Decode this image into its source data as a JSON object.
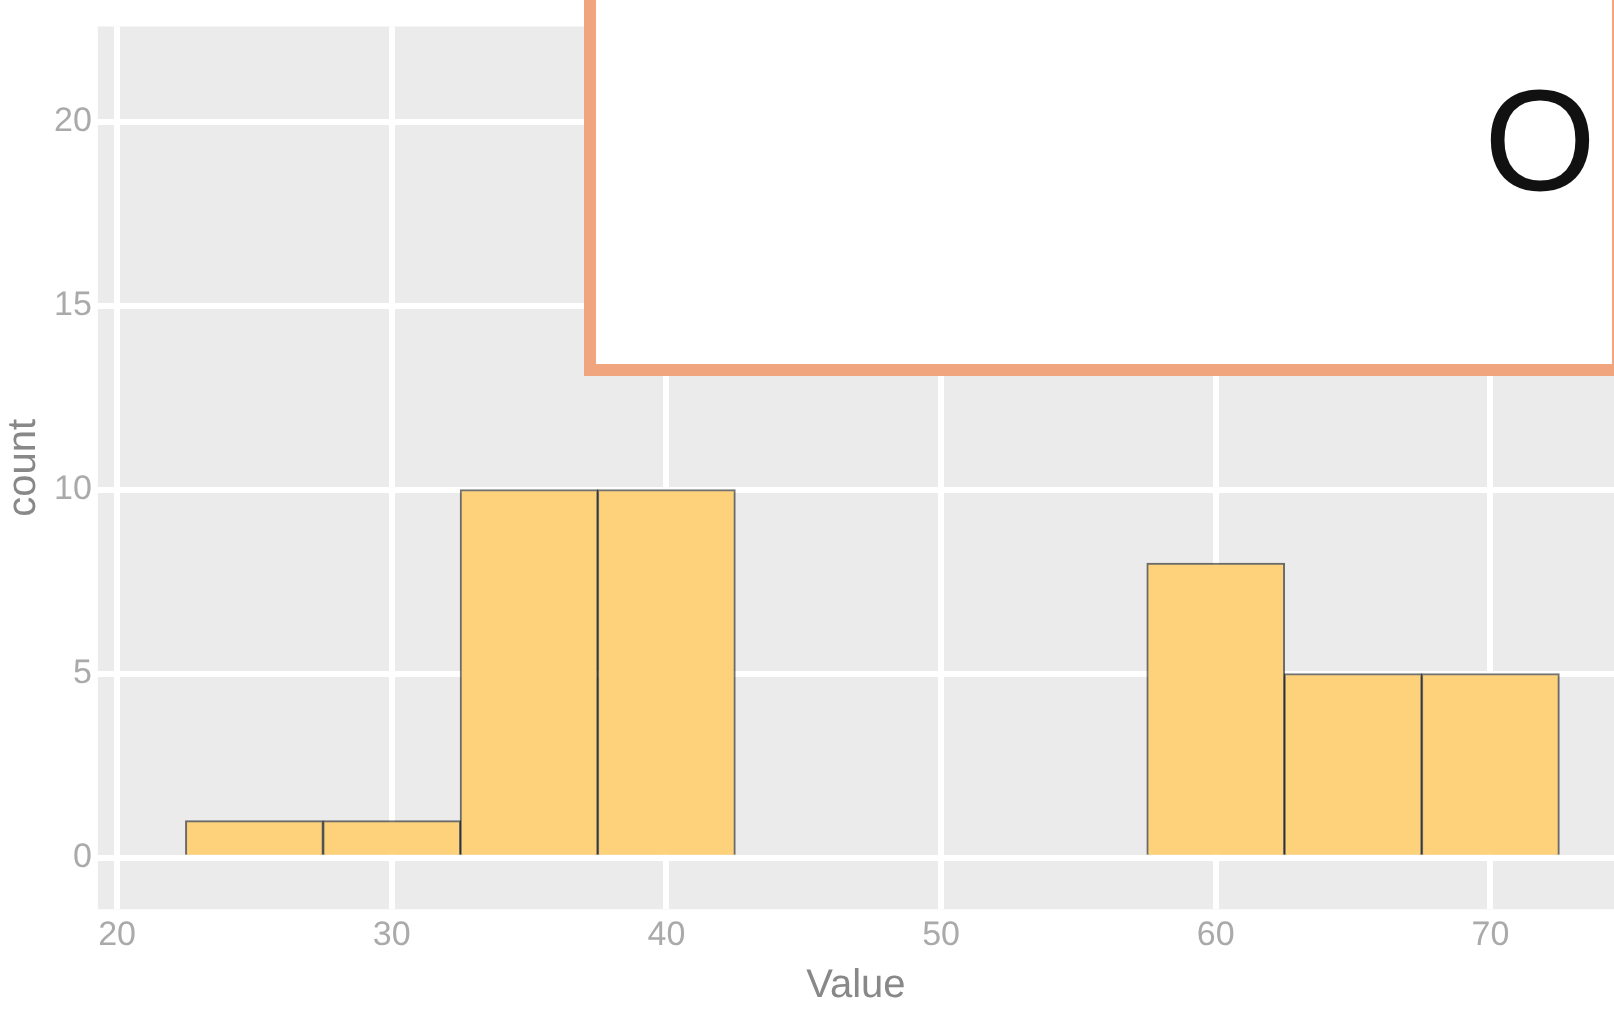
{
  "chart_data": {
    "type": "histogram",
    "xlabel": "Value",
    "ylabel": "count",
    "bins": [
      22.5,
      27.5,
      32.5,
      37.5,
      42.5,
      47.5,
      52.5,
      57.5,
      62.5,
      67.5,
      72.5
    ],
    "values": [
      1,
      1,
      10,
      10,
      null,
      null,
      null,
      8,
      5,
      5
    ],
    "color": "#fdd27a",
    "xlim": [
      19.3,
      74.5
    ],
    "xticks": [
      20,
      30,
      40,
      50,
      60,
      70
    ],
    "ylim": [
      -1.4,
      22.6
    ],
    "yticks": [
      0,
      5,
      10,
      15,
      20
    ],
    "grid": true,
    "legend": false,
    "annotations": [
      "O"
    ]
  }
}
